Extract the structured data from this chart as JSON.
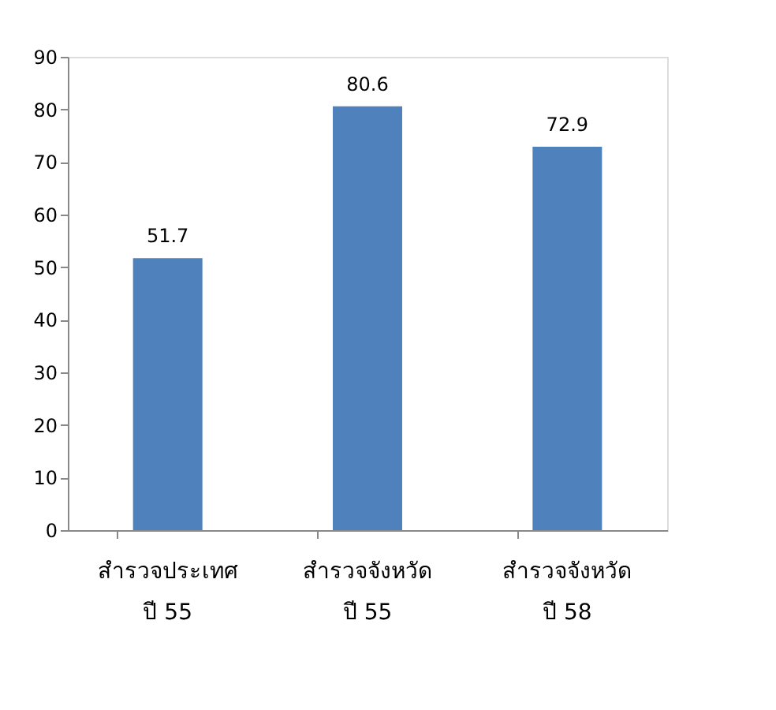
{
  "chart_data": {
    "type": "bar",
    "categories": [
      "สำรวจประเทศ\nปี 55",
      "สำรวจจังหวัด\nปี 55",
      "สำรวจจังหวัด\nปี 58"
    ],
    "values": [
      51.7,
      80.6,
      72.9
    ],
    "color": "#4f81bd",
    "ylim": [
      0,
      90
    ],
    "yticks": [
      0,
      10,
      20,
      30,
      40,
      50,
      60,
      70,
      80,
      90
    ],
    "grid": false,
    "data_labels": true
  }
}
